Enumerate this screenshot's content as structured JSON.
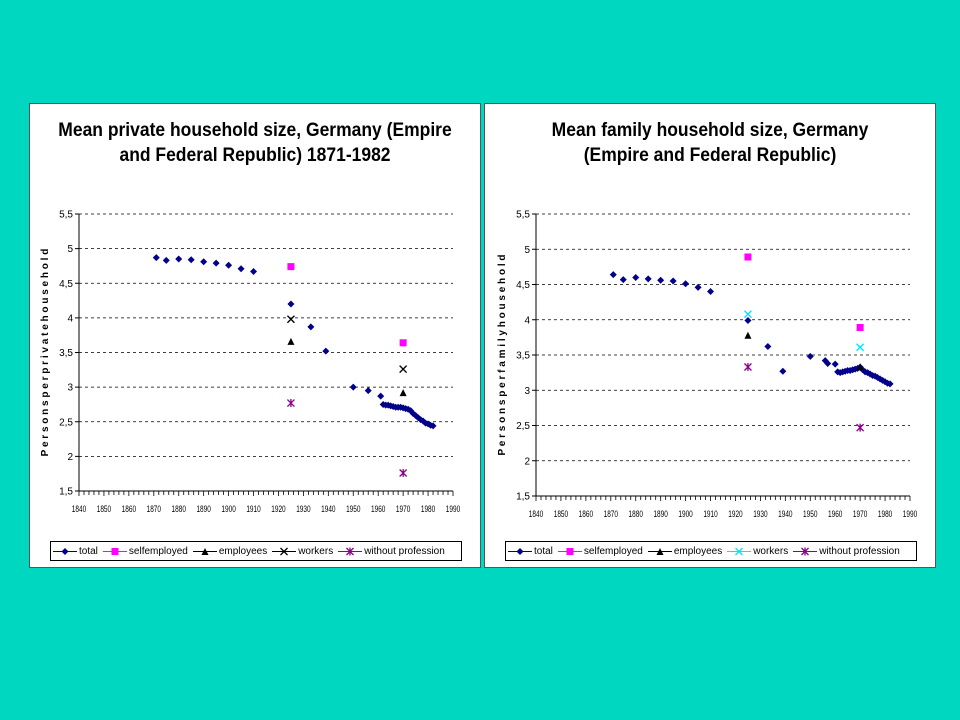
{
  "colors": {
    "background": "#00d7c0",
    "total": "#00008b",
    "selfemployed": "#ff00ff",
    "employees": "#000000",
    "workers_left": "#000000",
    "workers_right": "#00e5ff",
    "without_profession": "#8b008b"
  },
  "chart_data": [
    {
      "type": "scatter",
      "title_lines": [
        "Mean private household size, Germany (Empire",
        "and Federal Republic) 1871-1982"
      ],
      "xlabel": "",
      "ylabel": "P e r s o n s   p e r   p r i v a t e   h o u s e h o l d",
      "xlim": [
        1840,
        1990
      ],
      "ylim": [
        1.5,
        5.5
      ],
      "yticks": [
        "1,5",
        "2",
        "2,5",
        "3",
        "3,5",
        "4",
        "4,5",
        "5",
        "5,5"
      ],
      "xticks": [
        "1840",
        "1850",
        "1860",
        "1870",
        "1880",
        "1890",
        "1900",
        "1910",
        "1920",
        "1930",
        "1940",
        "1950",
        "1960",
        "1970",
        "1980",
        "1990"
      ],
      "grid": true,
      "legend_position": "bottom",
      "series": [
        {
          "name": "total",
          "marker": "diamond",
          "points": [
            [
              1871,
              4.87
            ],
            [
              1875,
              4.83
            ],
            [
              1880,
              4.85
            ],
            [
              1885,
              4.84
            ],
            [
              1890,
              4.81
            ],
            [
              1895,
              4.79
            ],
            [
              1900,
              4.76
            ],
            [
              1905,
              4.71
            ],
            [
              1910,
              4.67
            ],
            [
              1925,
              4.2
            ],
            [
              1933,
              3.87
            ],
            [
              1939,
              3.52
            ],
            [
              1950,
              3.0
            ],
            [
              1956,
              2.95
            ],
            [
              1961,
              2.87
            ],
            [
              1962,
              2.75
            ],
            [
              1963,
              2.74
            ],
            [
              1964,
              2.74
            ],
            [
              1965,
              2.73
            ],
            [
              1966,
              2.72
            ],
            [
              1967,
              2.71
            ],
            [
              1968,
              2.71
            ],
            [
              1969,
              2.71
            ],
            [
              1970,
              2.7
            ],
            [
              1971,
              2.69
            ],
            [
              1972,
              2.68
            ],
            [
              1973,
              2.66
            ],
            [
              1974,
              2.62
            ],
            [
              1975,
              2.59
            ],
            [
              1976,
              2.56
            ],
            [
              1977,
              2.53
            ],
            [
              1978,
              2.51
            ],
            [
              1979,
              2.48
            ],
            [
              1980,
              2.47
            ],
            [
              1981,
              2.45
            ],
            [
              1982,
              2.44
            ]
          ]
        },
        {
          "name": "selfemployed",
          "marker": "square",
          "points": [
            [
              1925,
              4.74
            ],
            [
              1970,
              3.64
            ]
          ]
        },
        {
          "name": "employees",
          "marker": "triangle",
          "points": [
            [
              1925,
              3.66
            ],
            [
              1970,
              2.92
            ]
          ]
        },
        {
          "name": "workers",
          "marker": "x",
          "points": [
            [
              1925,
              3.98
            ],
            [
              1970,
              3.26
            ]
          ]
        },
        {
          "name": "without profession",
          "marker": "star",
          "points": [
            [
              1925,
              2.77
            ],
            [
              1970,
              1.76
            ]
          ]
        }
      ]
    },
    {
      "type": "scatter",
      "title_lines": [
        "Mean family household size, Germany",
        "(Empire and Federal Republic)"
      ],
      "xlabel": "",
      "ylabel": "P e r s o n s   p e r   f a m i l y   h o u s e h o l d",
      "xlim": [
        1840,
        1990
      ],
      "ylim": [
        1.5,
        5.5
      ],
      "yticks": [
        "1,5",
        "2",
        "2,5",
        "3",
        "3,5",
        "4",
        "4,5",
        "5",
        "5,5"
      ],
      "xticks": [
        "1840",
        "1850",
        "1860",
        "1870",
        "1880",
        "1890",
        "1900",
        "1910",
        "1920",
        "1930",
        "1940",
        "1950",
        "1960",
        "1970",
        "1980",
        "1990"
      ],
      "grid": true,
      "legend_position": "bottom",
      "series": [
        {
          "name": "total",
          "marker": "diamond",
          "points": [
            [
              1871,
              4.64
            ],
            [
              1875,
              4.57
            ],
            [
              1880,
              4.6
            ],
            [
              1885,
              4.58
            ],
            [
              1890,
              4.56
            ],
            [
              1895,
              4.55
            ],
            [
              1900,
              4.51
            ],
            [
              1905,
              4.46
            ],
            [
              1910,
              4.4
            ],
            [
              1925,
              3.99
            ],
            [
              1933,
              3.62
            ],
            [
              1939,
              3.27
            ],
            [
              1950,
              3.48
            ],
            [
              1956,
              3.42
            ],
            [
              1957,
              3.38
            ],
            [
              1960,
              3.37
            ],
            [
              1961,
              3.26
            ],
            [
              1962,
              3.25
            ],
            [
              1963,
              3.26
            ],
            [
              1964,
              3.27
            ],
            [
              1965,
              3.28
            ],
            [
              1966,
              3.28
            ],
            [
              1967,
              3.29
            ],
            [
              1968,
              3.3
            ],
            [
              1969,
              3.31
            ],
            [
              1970,
              3.33
            ],
            [
              1971,
              3.29
            ],
            [
              1972,
              3.26
            ],
            [
              1973,
              3.25
            ],
            [
              1974,
              3.23
            ],
            [
              1975,
              3.21
            ],
            [
              1976,
              3.2
            ],
            [
              1977,
              3.18
            ],
            [
              1978,
              3.16
            ],
            [
              1979,
              3.14
            ],
            [
              1980,
              3.12
            ],
            [
              1981,
              3.1
            ],
            [
              1982,
              3.09
            ]
          ]
        },
        {
          "name": "selfemployed",
          "marker": "square",
          "points": [
            [
              1925,
              4.89
            ],
            [
              1970,
              3.89
            ]
          ]
        },
        {
          "name": "employees",
          "marker": "triangle",
          "points": [
            [
              1925,
              3.78
            ],
            [
              1970,
              3.33
            ]
          ]
        },
        {
          "name": "workers",
          "marker": "x",
          "points": [
            [
              1925,
              4.08
            ],
            [
              1970,
              3.61
            ]
          ]
        },
        {
          "name": "without profession",
          "marker": "star",
          "points": [
            [
              1925,
              3.33
            ],
            [
              1970,
              2.47
            ]
          ]
        }
      ]
    }
  ]
}
